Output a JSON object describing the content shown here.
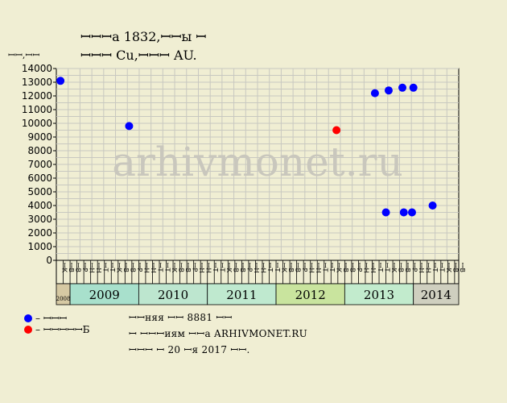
{
  "chart_data": {
    "type": "scatter",
    "title_line1": "ꟷꟷꟷа 1832,ꟷꟷы ꟷ",
    "title_line2": "ꟷꟷꟷ Cu,ꟷꟷꟷ AU.",
    "ylabel": "ꟷꟷ,ꟷꟷ",
    "ylim": [
      0,
      14000
    ],
    "yticks": [
      0,
      1000,
      2000,
      3000,
      4000,
      5000,
      6000,
      7000,
      8000,
      9000,
      10000,
      11000,
      12000,
      13000,
      14000
    ],
    "watermark": "arhivmonet.ru",
    "grid": true,
    "month_labels": [
      "ꟷК",
      "ꟷВ",
      "ꟷВ",
      "ꟷР",
      "ꟷН",
      "ꟷН",
      "ꟷТ",
      "ꟷТ",
      "ꟷК",
      "ꟷВ",
      "ꟷВ",
      "ꟷР",
      "ꟷН",
      "ꟷН",
      "ꟷТ",
      "ꟷТ",
      "ꟷК",
      "ꟷВ",
      "ꟷВ",
      "ꟷР",
      "ꟷН",
      "ꟷН",
      "ꟷТ",
      "ꟷТ",
      "ꟷК",
      "ꟷВ",
      "ꟷВ",
      "ꟷР",
      "ꟷН",
      "ꟷН",
      "ꟷТ",
      "ꟷТ",
      "ꟷК",
      "ꟷВ",
      "ꟷВ",
      "ꟷР",
      "ꟷН",
      "ꟷН",
      "ꟷТ",
      "ꟷТ",
      "ꟷК",
      "ꟷВ",
      "ꟷВ",
      "ꟷР",
      "ꟷН",
      "ꟷН",
      "ꟷТ",
      "ꟷТ",
      "ꟷК",
      "ꟷВ",
      "ꟷВ",
      "ꟷР",
      "ꟷН",
      "ꟷН",
      "ꟷТ",
      "ꟷТ",
      "ꟷК",
      "ꟷВ",
      "ꟷВ",
      "ꟷР",
      "ꟷН",
      "ꟷН",
      "ꟷТ",
      "ꟷТ",
      "ꟷК",
      "ꟷВ",
      "ꟷВ",
      "ꟷР",
      "ꟷН",
      "ꟷН",
      "ꟷТ",
      "ꟷТ",
      "ꟷК",
      "ꟷВ",
      "ꟷВ",
      "ꟷР",
      "ꟷН",
      "ꟷН",
      "ꟷТ",
      "ꟷТ"
    ],
    "years": [
      {
        "label": "2008",
        "start": 0,
        "span": 1,
        "color": "#d6c9a3"
      },
      {
        "label": "2009",
        "start": 1,
        "span": 5,
        "color": "#a8e0cc"
      },
      {
        "label": "2010",
        "start": 6,
        "span": 5,
        "color": "#bde6cf"
      },
      {
        "label": "2011",
        "start": 11,
        "span": 5,
        "color": "#bfe9cf"
      },
      {
        "label": "2012",
        "start": 16,
        "span": 5,
        "color": "#c9e49e"
      },
      {
        "label": "2013",
        "start": 21,
        "span": 5,
        "color": "#c2ebcd"
      },
      {
        "label": "2014",
        "start": 26,
        "span": 3.3,
        "color": "#cfcfbf"
      }
    ],
    "series": [
      {
        "name": "– ꟷꟷꟷ",
        "color": "#0000ff",
        "points": [
          [
            0.3,
            13100
          ],
          [
            5.3,
            9800
          ],
          [
            23.2,
            12200
          ],
          [
            24.2,
            12400
          ],
          [
            25.2,
            12600
          ],
          [
            26.0,
            12600
          ],
          [
            24.0,
            3500
          ],
          [
            25.3,
            3500
          ],
          [
            25.9,
            3500
          ],
          [
            27.4,
            4000
          ]
        ]
      },
      {
        "name": "– ꟷꟷꟷꟷꟷБ",
        "color": "#ff0000",
        "points": [
          [
            20.4,
            9500
          ]
        ]
      }
    ]
  },
  "notes": [
    "ꟷꟷняя ꟷꟷ 8881 ꟷꟷ",
    "ꟷ ꟷꟷꟷиям ꟷꟷа ARHIVMONET.RU",
    "ꟷꟷꟷ ꟷ 20 ꟷя 2017 ꟷꟷ."
  ]
}
